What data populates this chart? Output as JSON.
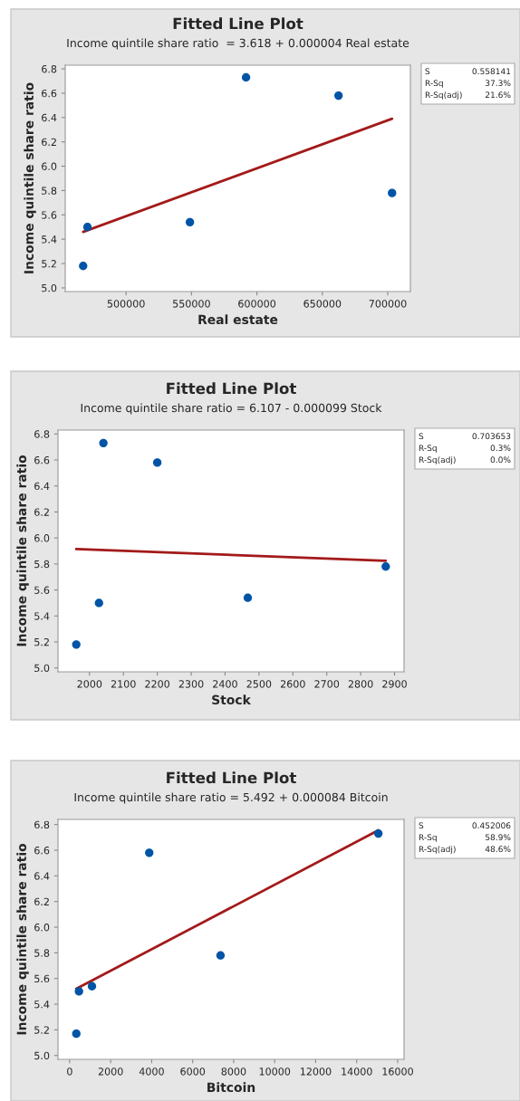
{
  "chart_data": [
    {
      "type": "scatter",
      "title": "Fitted Line Plot",
      "subtitle": "Income quintile share ratio  = 3.618 + 0.000004 Real estate",
      "xlabel": "Real estate",
      "ylabel": "Income quintile share ratio",
      "xlim": [
        453500,
        717300
      ],
      "xticks": [
        500000,
        550000,
        600000,
        650000,
        700000
      ],
      "ylim": [
        4.97,
        6.83
      ],
      "yticks": [
        {
          "value": 5.0,
          "label": "5.0"
        },
        {
          "value": 5.2,
          "label": "5.2"
        },
        {
          "value": 5.4,
          "label": "5.4"
        },
        {
          "value": 5.6,
          "label": "5.6"
        },
        {
          "value": 5.8,
          "label": "5.8"
        },
        {
          "value": 6.0,
          "label": "6.0"
        },
        {
          "value": 6.2,
          "label": "6.2"
        },
        {
          "value": 6.4,
          "label": "6.4"
        },
        {
          "value": 6.6,
          "label": "6.6"
        },
        {
          "value": 6.8,
          "label": "6.8"
        }
      ],
      "grid": false,
      "legend": false,
      "series": [
        {
          "marker": "circle",
          "color": "#0054a6",
          "x": [
            467200,
            470500,
            548800,
            591700,
            662400,
            703300
          ],
          "values": [
            5.18,
            5.5,
            5.54,
            6.73,
            6.58,
            5.78
          ]
        },
        {
          "type": "line",
          "marker": "none",
          "color": "#a31a1a",
          "x": [
            467200,
            703300
          ],
          "values": [
            5.46,
            6.39
          ]
        }
      ],
      "annotations": [
        "S",
        "0.558141",
        "R-Sq",
        "37.3%",
        "R-Sq(adj)",
        "21.6%"
      ]
    },
    {
      "type": "scatter",
      "title": "Fitted Line Plot",
      "subtitle": "Income quintile share ratio = 6.107 - 0.000099 Stock",
      "xlabel": "Stock",
      "ylabel": "Income quintile share ratio",
      "xlim": [
        1907,
        2928
      ],
      "xticks": [
        2000,
        2100,
        2200,
        2300,
        2400,
        2500,
        2600,
        2700,
        2800,
        2900
      ],
      "ylim": [
        4.97,
        6.83
      ],
      "yticks": [
        {
          "value": 5.0,
          "label": "5.0"
        },
        {
          "value": 5.2,
          "label": "5.2"
        },
        {
          "value": 5.4,
          "label": "5.4"
        },
        {
          "value": 5.6,
          "label": "5.6"
        },
        {
          "value": 5.8,
          "label": "5.8"
        },
        {
          "value": 6.0,
          "label": "6.0"
        },
        {
          "value": 6.2,
          "label": "6.2"
        },
        {
          "value": 6.4,
          "label": "6.4"
        },
        {
          "value": 6.6,
          "label": "6.6"
        },
        {
          "value": 6.8,
          "label": "6.8"
        }
      ],
      "grid": false,
      "legend": false,
      "series": [
        {
          "marker": "circle",
          "color": "#0054a6",
          "x": [
            1961,
            2028,
            2041,
            2200,
            2467,
            2874
          ],
          "values": [
            5.18,
            5.5,
            6.73,
            6.58,
            5.54,
            5.78
          ]
        },
        {
          "type": "line",
          "marker": "none",
          "color": "#a31a1a",
          "x": [
            1961,
            2874
          ],
          "values": [
            5.915,
            5.825
          ]
        }
      ],
      "annotations": [
        "S",
        "0.703653",
        "R-Sq",
        "0.3%",
        "R-Sq(adj)",
        "0.0%"
      ]
    },
    {
      "type": "scatter",
      "title": "Fitted Line Plot",
      "subtitle": "Income quintile share ratio = 5.492 + 0.000084 Bitcoin",
      "xlabel": "Bitcoin",
      "ylabel": "Income quintile share ratio",
      "xlim": [
        -570,
        16310
      ],
      "xticks": [
        0,
        2000,
        4000,
        6000,
        8000,
        10000,
        12000,
        14000,
        16000
      ],
      "ylim": [
        4.97,
        6.84
      ],
      "yticks": [
        {
          "value": 5.0,
          "label": "5.0"
        },
        {
          "value": 5.2,
          "label": "5.2"
        },
        {
          "value": 5.4,
          "label": "5.4"
        },
        {
          "value": 5.6,
          "label": "5.6"
        },
        {
          "value": 5.8,
          "label": "5.8"
        },
        {
          "value": 6.0,
          "label": "6.0"
        },
        {
          "value": 6.2,
          "label": "6.2"
        },
        {
          "value": 6.4,
          "label": "6.4"
        },
        {
          "value": 6.6,
          "label": "6.6"
        },
        {
          "value": 6.8,
          "label": "6.8"
        }
      ],
      "grid": false,
      "legend": false,
      "series": [
        {
          "marker": "circle",
          "color": "#0054a6",
          "x": [
            325,
            455,
            1088,
            3882,
            7359,
            15058
          ],
          "values": [
            5.17,
            5.5,
            5.54,
            6.58,
            5.78,
            6.73
          ]
        },
        {
          "type": "line",
          "marker": "none",
          "color": "#a31a1a",
          "x": [
            325,
            15058
          ],
          "values": [
            5.52,
            6.755
          ]
        }
      ],
      "annotations": [
        "S",
        "0.452006",
        "R-Sq",
        "58.9%",
        "R-Sq(adj)",
        "48.6%"
      ]
    }
  ]
}
